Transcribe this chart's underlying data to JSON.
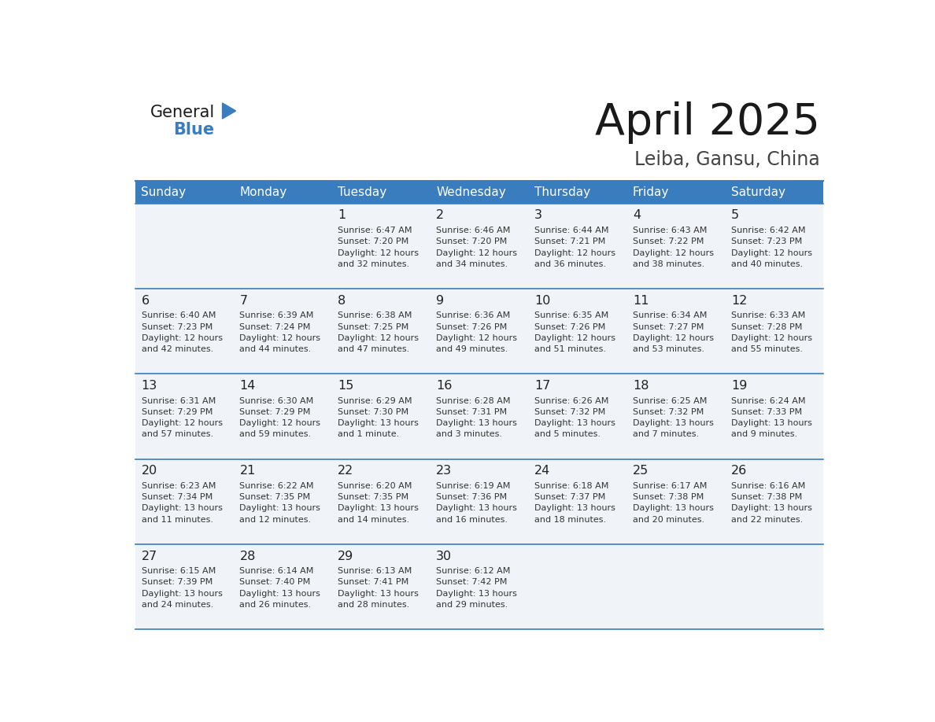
{
  "title": "April 2025",
  "subtitle": "Leiba, Gansu, China",
  "header_color": "#3a7dbf",
  "header_text_color": "#ffffff",
  "cell_bg_color": "#f0f4f8",
  "border_color": "#3a7dbf",
  "text_color": "#333333",
  "days_of_week": [
    "Sunday",
    "Monday",
    "Tuesday",
    "Wednesday",
    "Thursday",
    "Friday",
    "Saturday"
  ],
  "weeks": [
    [
      {
        "day": "",
        "lines": []
      },
      {
        "day": "",
        "lines": []
      },
      {
        "day": "1",
        "lines": [
          "Sunrise: 6:47 AM",
          "Sunset: 7:20 PM",
          "Daylight: 12 hours",
          "and 32 minutes."
        ]
      },
      {
        "day": "2",
        "lines": [
          "Sunrise: 6:46 AM",
          "Sunset: 7:20 PM",
          "Daylight: 12 hours",
          "and 34 minutes."
        ]
      },
      {
        "day": "3",
        "lines": [
          "Sunrise: 6:44 AM",
          "Sunset: 7:21 PM",
          "Daylight: 12 hours",
          "and 36 minutes."
        ]
      },
      {
        "day": "4",
        "lines": [
          "Sunrise: 6:43 AM",
          "Sunset: 7:22 PM",
          "Daylight: 12 hours",
          "and 38 minutes."
        ]
      },
      {
        "day": "5",
        "lines": [
          "Sunrise: 6:42 AM",
          "Sunset: 7:23 PM",
          "Daylight: 12 hours",
          "and 40 minutes."
        ]
      }
    ],
    [
      {
        "day": "6",
        "lines": [
          "Sunrise: 6:40 AM",
          "Sunset: 7:23 PM",
          "Daylight: 12 hours",
          "and 42 minutes."
        ]
      },
      {
        "day": "7",
        "lines": [
          "Sunrise: 6:39 AM",
          "Sunset: 7:24 PM",
          "Daylight: 12 hours",
          "and 44 minutes."
        ]
      },
      {
        "day": "8",
        "lines": [
          "Sunrise: 6:38 AM",
          "Sunset: 7:25 PM",
          "Daylight: 12 hours",
          "and 47 minutes."
        ]
      },
      {
        "day": "9",
        "lines": [
          "Sunrise: 6:36 AM",
          "Sunset: 7:26 PM",
          "Daylight: 12 hours",
          "and 49 minutes."
        ]
      },
      {
        "day": "10",
        "lines": [
          "Sunrise: 6:35 AM",
          "Sunset: 7:26 PM",
          "Daylight: 12 hours",
          "and 51 minutes."
        ]
      },
      {
        "day": "11",
        "lines": [
          "Sunrise: 6:34 AM",
          "Sunset: 7:27 PM",
          "Daylight: 12 hours",
          "and 53 minutes."
        ]
      },
      {
        "day": "12",
        "lines": [
          "Sunrise: 6:33 AM",
          "Sunset: 7:28 PM",
          "Daylight: 12 hours",
          "and 55 minutes."
        ]
      }
    ],
    [
      {
        "day": "13",
        "lines": [
          "Sunrise: 6:31 AM",
          "Sunset: 7:29 PM",
          "Daylight: 12 hours",
          "and 57 minutes."
        ]
      },
      {
        "day": "14",
        "lines": [
          "Sunrise: 6:30 AM",
          "Sunset: 7:29 PM",
          "Daylight: 12 hours",
          "and 59 minutes."
        ]
      },
      {
        "day": "15",
        "lines": [
          "Sunrise: 6:29 AM",
          "Sunset: 7:30 PM",
          "Daylight: 13 hours",
          "and 1 minute."
        ]
      },
      {
        "day": "16",
        "lines": [
          "Sunrise: 6:28 AM",
          "Sunset: 7:31 PM",
          "Daylight: 13 hours",
          "and 3 minutes."
        ]
      },
      {
        "day": "17",
        "lines": [
          "Sunrise: 6:26 AM",
          "Sunset: 7:32 PM",
          "Daylight: 13 hours",
          "and 5 minutes."
        ]
      },
      {
        "day": "18",
        "lines": [
          "Sunrise: 6:25 AM",
          "Sunset: 7:32 PM",
          "Daylight: 13 hours",
          "and 7 minutes."
        ]
      },
      {
        "day": "19",
        "lines": [
          "Sunrise: 6:24 AM",
          "Sunset: 7:33 PM",
          "Daylight: 13 hours",
          "and 9 minutes."
        ]
      }
    ],
    [
      {
        "day": "20",
        "lines": [
          "Sunrise: 6:23 AM",
          "Sunset: 7:34 PM",
          "Daylight: 13 hours",
          "and 11 minutes."
        ]
      },
      {
        "day": "21",
        "lines": [
          "Sunrise: 6:22 AM",
          "Sunset: 7:35 PM",
          "Daylight: 13 hours",
          "and 12 minutes."
        ]
      },
      {
        "day": "22",
        "lines": [
          "Sunrise: 6:20 AM",
          "Sunset: 7:35 PM",
          "Daylight: 13 hours",
          "and 14 minutes."
        ]
      },
      {
        "day": "23",
        "lines": [
          "Sunrise: 6:19 AM",
          "Sunset: 7:36 PM",
          "Daylight: 13 hours",
          "and 16 minutes."
        ]
      },
      {
        "day": "24",
        "lines": [
          "Sunrise: 6:18 AM",
          "Sunset: 7:37 PM",
          "Daylight: 13 hours",
          "and 18 minutes."
        ]
      },
      {
        "day": "25",
        "lines": [
          "Sunrise: 6:17 AM",
          "Sunset: 7:38 PM",
          "Daylight: 13 hours",
          "and 20 minutes."
        ]
      },
      {
        "day": "26",
        "lines": [
          "Sunrise: 6:16 AM",
          "Sunset: 7:38 PM",
          "Daylight: 13 hours",
          "and 22 minutes."
        ]
      }
    ],
    [
      {
        "day": "27",
        "lines": [
          "Sunrise: 6:15 AM",
          "Sunset: 7:39 PM",
          "Daylight: 13 hours",
          "and 24 minutes."
        ]
      },
      {
        "day": "28",
        "lines": [
          "Sunrise: 6:14 AM",
          "Sunset: 7:40 PM",
          "Daylight: 13 hours",
          "and 26 minutes."
        ]
      },
      {
        "day": "29",
        "lines": [
          "Sunrise: 6:13 AM",
          "Sunset: 7:41 PM",
          "Daylight: 13 hours",
          "and 28 minutes."
        ]
      },
      {
        "day": "30",
        "lines": [
          "Sunrise: 6:12 AM",
          "Sunset: 7:42 PM",
          "Daylight: 13 hours",
          "and 29 minutes."
        ]
      },
      {
        "day": "",
        "lines": []
      },
      {
        "day": "",
        "lines": []
      },
      {
        "day": "",
        "lines": []
      }
    ]
  ]
}
